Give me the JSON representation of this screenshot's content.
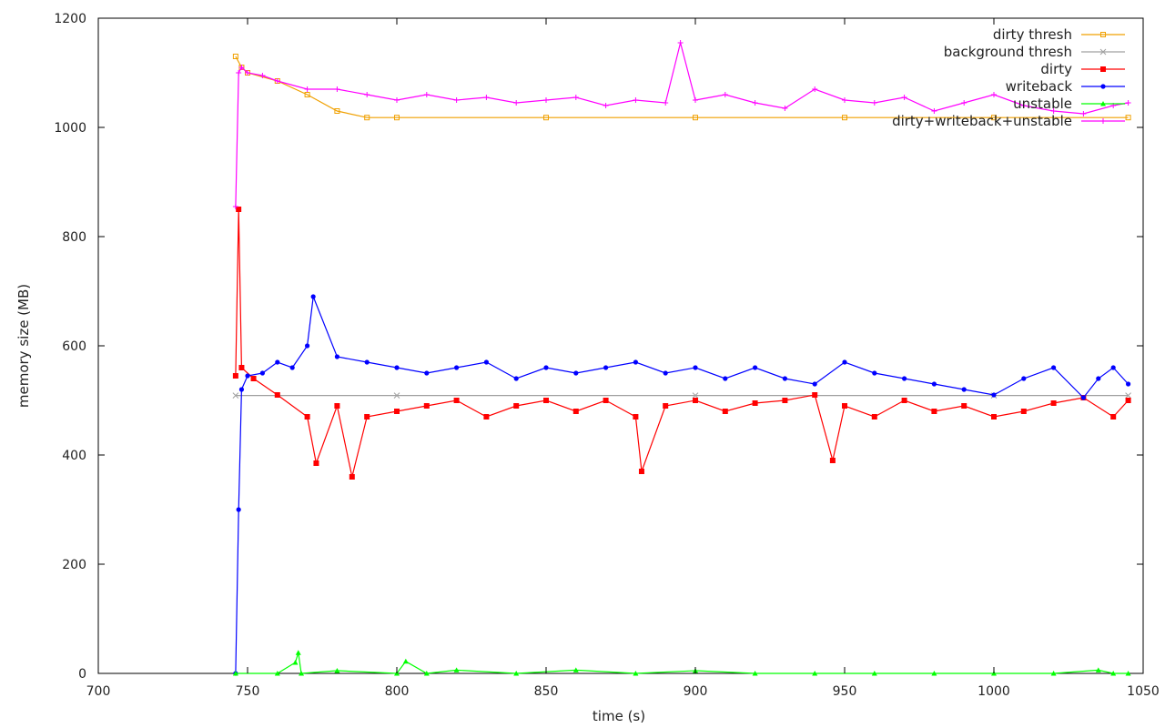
{
  "chart_data": {
    "type": "line",
    "title": "",
    "xlabel": "time (s)",
    "ylabel": "memory size (MB)",
    "xlim": [
      700,
      1050
    ],
    "ylim": [
      0,
      1200
    ],
    "x_ticks": [
      700,
      750,
      800,
      850,
      900,
      950,
      1000,
      1050
    ],
    "y_ticks": [
      0,
      200,
      400,
      600,
      800,
      1000,
      1200
    ],
    "grid": false,
    "legend_position": "top-right",
    "series": [
      {
        "name": "dirty thresh",
        "color": "#f0a000",
        "marker": "square-open",
        "x": [
          746,
          748,
          750,
          760,
          770,
          780,
          790,
          800,
          850,
          900,
          950,
          1000,
          1045
        ],
        "y": [
          1130,
          1110,
          1100,
          1085,
          1060,
          1030,
          1018,
          1018,
          1018,
          1018,
          1018,
          1018,
          1018
        ]
      },
      {
        "name": "background thresh",
        "color": "#a0a0a0",
        "marker": "x",
        "x": [
          746,
          800,
          900,
          1000,
          1045
        ],
        "y": [
          509,
          509,
          509,
          509,
          509
        ]
      },
      {
        "name": "dirty",
        "color": "#ff0000",
        "marker": "square",
        "x": [
          746,
          747,
          748,
          752,
          760,
          770,
          773,
          780,
          785,
          790,
          800,
          810,
          820,
          830,
          840,
          850,
          860,
          870,
          880,
          882,
          890,
          900,
          910,
          920,
          930,
          940,
          946,
          950,
          960,
          970,
          980,
          990,
          1000,
          1010,
          1020,
          1030,
          1040,
          1045
        ],
        "y": [
          545,
          850,
          560,
          540,
          510,
          470,
          385,
          490,
          360,
          470,
          480,
          490,
          500,
          470,
          490,
          500,
          480,
          500,
          470,
          370,
          490,
          500,
          480,
          495,
          500,
          510,
          390,
          490,
          470,
          500,
          480,
          490,
          470,
          480,
          495,
          505,
          470,
          500
        ]
      },
      {
        "name": "writeback",
        "color": "#0000ff",
        "marker": "circle",
        "x": [
          746,
          747,
          748,
          750,
          755,
          760,
          765,
          770,
          772,
          780,
          790,
          800,
          810,
          820,
          830,
          840,
          850,
          860,
          870,
          880,
          890,
          900,
          910,
          920,
          930,
          940,
          950,
          960,
          970,
          980,
          990,
          1000,
          1010,
          1020,
          1030,
          1035,
          1040,
          1045
        ],
        "y": [
          0,
          300,
          520,
          545,
          550,
          570,
          560,
          600,
          690,
          580,
          570,
          560,
          550,
          560,
          570,
          540,
          560,
          550,
          560,
          570,
          550,
          560,
          540,
          560,
          540,
          530,
          570,
          550,
          540,
          530,
          520,
          510,
          540,
          560,
          505,
          540,
          560,
          530
        ]
      },
      {
        "name": "unstable",
        "color": "#00ff00",
        "marker": "triangle",
        "x": [
          746,
          760,
          766,
          767,
          768,
          780,
          800,
          803,
          810,
          820,
          840,
          860,
          880,
          900,
          920,
          940,
          960,
          980,
          1000,
          1020,
          1035,
          1040,
          1045
        ],
        "y": [
          0,
          0,
          20,
          38,
          0,
          5,
          0,
          22,
          0,
          6,
          0,
          6,
          0,
          5,
          0,
          0,
          0,
          0,
          0,
          0,
          6,
          0,
          0
        ]
      },
      {
        "name": "dirty+writeback+unstable",
        "color": "#ff00ff",
        "marker": "plus",
        "x": [
          746,
          747,
          748,
          750,
          755,
          760,
          770,
          780,
          790,
          800,
          810,
          820,
          830,
          840,
          850,
          860,
          870,
          880,
          890,
          895,
          900,
          910,
          920,
          930,
          940,
          950,
          960,
          970,
          980,
          990,
          1000,
          1010,
          1020,
          1030,
          1040,
          1045
        ],
        "y": [
          855,
          1100,
          1110,
          1100,
          1095,
          1085,
          1070,
          1070,
          1060,
          1050,
          1060,
          1050,
          1055,
          1045,
          1050,
          1055,
          1040,
          1050,
          1045,
          1155,
          1050,
          1060,
          1045,
          1035,
          1070,
          1050,
          1045,
          1055,
          1030,
          1045,
          1060,
          1040,
          1030,
          1025,
          1040,
          1045
        ]
      }
    ]
  }
}
